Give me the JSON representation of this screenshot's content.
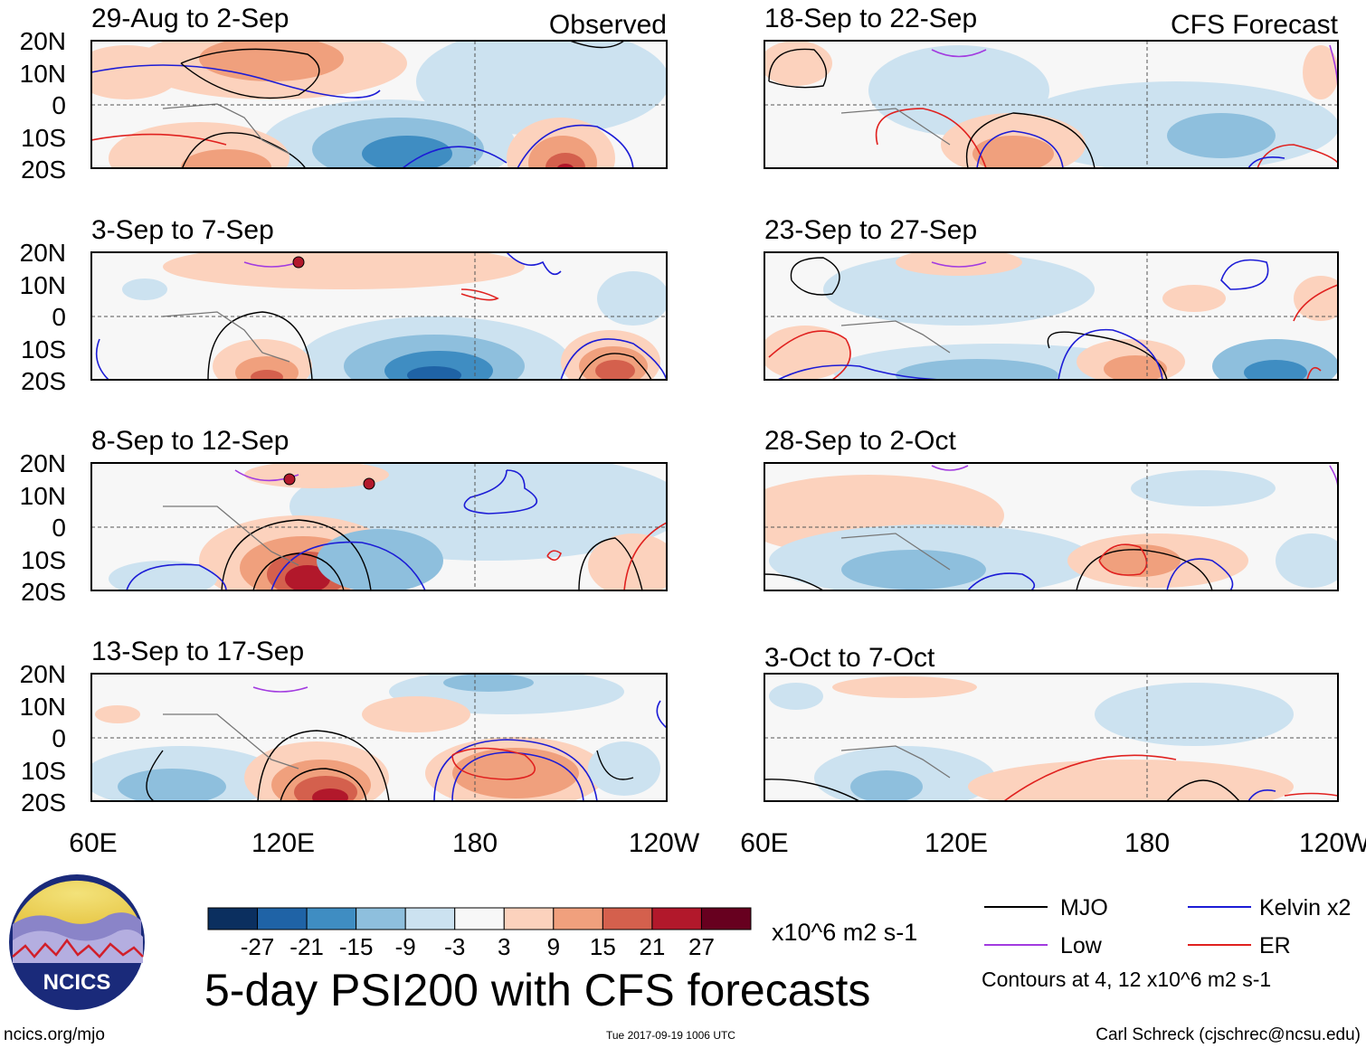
{
  "chart_data": {
    "type": "heatmap",
    "title": "5-day PSI200 with CFS forecasts",
    "variable": "200-hPa streamfunction anomaly (PSI200)",
    "units": "x10^6 m2 s-1",
    "columns": [
      {
        "heading": "Observed",
        "panels": [
          {
            "period": "29-Aug to 2-Sep"
          },
          {
            "period": "3-Sep to 7-Sep"
          },
          {
            "period": "8-Sep to 12-Sep"
          },
          {
            "period": "13-Sep to 17-Sep"
          }
        ]
      },
      {
        "heading": "CFS Forecast",
        "panels": [
          {
            "period": "18-Sep to 22-Sep"
          },
          {
            "period": "23-Sep to 27-Sep"
          },
          {
            "period": "28-Sep to 2-Oct"
          },
          {
            "period": "3-Oct to 7-Oct"
          }
        ]
      }
    ],
    "y_ticks": [
      "20N",
      "10N",
      "0",
      "10S",
      "20S"
    ],
    "y_range_deg": [
      -20,
      20
    ],
    "x_ticks": [
      "60E",
      "120E",
      "180",
      "120W"
    ],
    "x_range_deg_east": [
      60,
      240
    ],
    "colorbar": {
      "labels": [
        "-27",
        "-21",
        "-15",
        "-9",
        "-3",
        "3",
        "9",
        "15",
        "21",
        "27"
      ],
      "colors": [
        "#0b2f5f",
        "#1f63a6",
        "#3f8dc2",
        "#8ebfdd",
        "#cce2f0",
        "#f7f7f7",
        "#fcd2bd",
        "#f0a07d",
        "#d4604d",
        "#b2182b",
        "#67001f"
      ]
    },
    "legend": [
      {
        "label": "MJO",
        "color": "#000000"
      },
      {
        "label": "Kelvin x2",
        "color": "#1c1cd6"
      },
      {
        "label": "Low",
        "color": "#a23be0"
      },
      {
        "label": "ER",
        "color": "#e0211f"
      }
    ],
    "contour_note": "Contours at 4, 12 x10^6 m2 s-1"
  },
  "logo": {
    "text": "NCICS"
  },
  "footer": {
    "url": "ncics.org/mjo",
    "timestamp": "Tue 2017-09-19 1006 UTC",
    "author": "Carl Schreck (cjschrec@ncsu.edu)"
  }
}
